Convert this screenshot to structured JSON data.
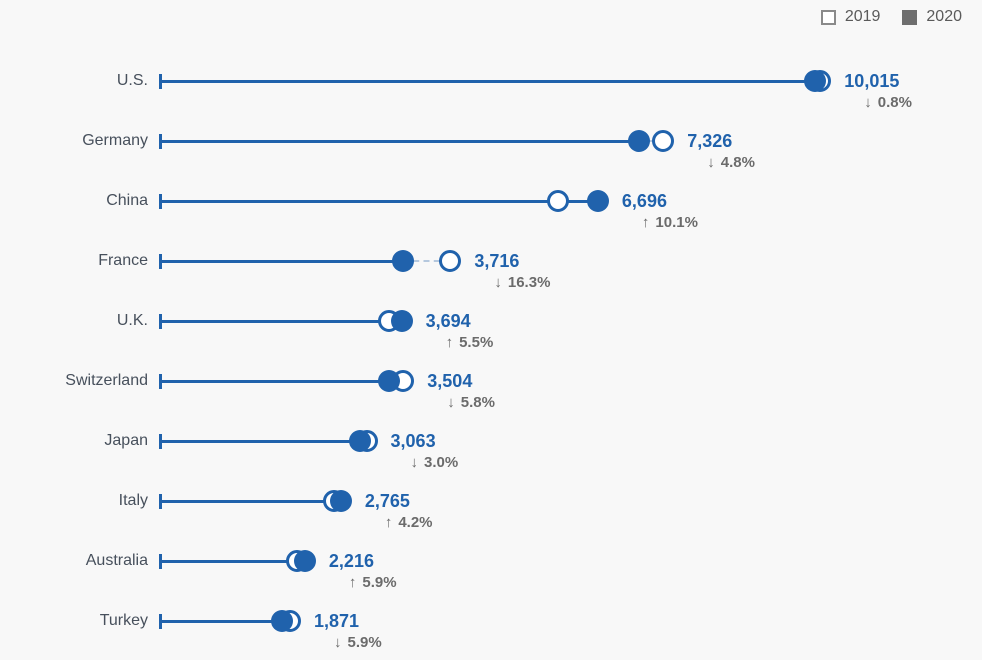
{
  "colors": {
    "accent_blue": "#2062ac",
    "dash_connector": "#b5c8de",
    "change_gray": "#6b6b6b",
    "category_gray": "#47505c",
    "legend_open_border": "#8a8a8a",
    "legend_filled": "#6e6e6e",
    "background": "#f8f8f8"
  },
  "legend": {
    "items": [
      {
        "label": "2019",
        "style": "open"
      },
      {
        "label": "2020",
        "style": "filled"
      }
    ]
  },
  "chart_data": {
    "type": "dumbbell",
    "title": "",
    "xlabel": "",
    "ylabel": "",
    "grid": false,
    "legend_position": "top-right",
    "categories": [
      "U.S.",
      "Germany",
      "China",
      "France",
      "U.K.",
      "Switzerland",
      "Japan",
      "Italy",
      "Australia",
      "Turkey"
    ],
    "series": [
      {
        "name": "2019",
        "marker": "open-circle",
        "estimated_from_change": true,
        "values": [
          10096,
          7695,
          6082,
          4440,
          3501,
          3720,
          3158,
          2654,
          2093,
          1988
        ]
      },
      {
        "name": "2020",
        "marker": "filled-circle",
        "values": [
          10015,
          7326,
          6696,
          3716,
          3694,
          3504,
          3063,
          2765,
          2216,
          1871
        ]
      }
    ],
    "value_labels": [
      "10,015",
      "7,326",
      "6,696",
      "3,716",
      "3,694",
      "3,504",
      "3,063",
      "2,765",
      "2,216",
      "1,871"
    ],
    "changes": [
      {
        "arrow": "↓",
        "direction": "down",
        "label": "0.8%"
      },
      {
        "arrow": "↓",
        "direction": "down",
        "label": "4.8%"
      },
      {
        "arrow": "↑",
        "direction": "up",
        "label": "10.1%"
      },
      {
        "arrow": "↓",
        "direction": "down",
        "label": "16.3%"
      },
      {
        "arrow": "↑",
        "direction": "up",
        "label": "5.5%"
      },
      {
        "arrow": "↓",
        "direction": "down",
        "label": "5.8%"
      },
      {
        "arrow": "↓",
        "direction": "down",
        "label": "3.0%"
      },
      {
        "arrow": "↑",
        "direction": "up",
        "label": "4.2%"
      },
      {
        "arrow": "↑",
        "direction": "up",
        "label": "5.9%"
      },
      {
        "arrow": "↓",
        "direction": "down",
        "label": "5.9%"
      }
    ],
    "xlim": [
      0,
      10015
    ]
  }
}
